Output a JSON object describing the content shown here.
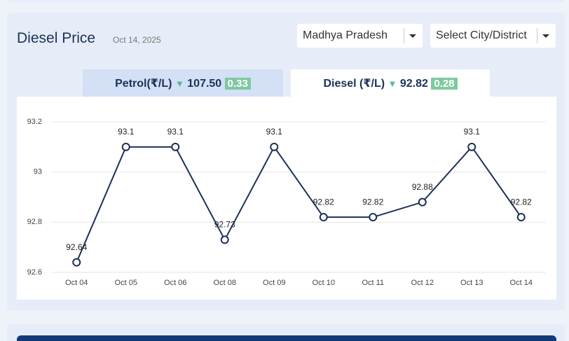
{
  "header": {
    "title": "Diesel Price",
    "date": "Oct 14, 2025",
    "state_select": "Madhya Pradesh",
    "city_select": "Select City/District"
  },
  "tabs": [
    {
      "label": "Petrol(₹/L)",
      "price": "107.50",
      "change": "0.33"
    },
    {
      "label": "Diesel (₹/L)",
      "price": "92.82",
      "change": "0.28"
    }
  ],
  "chart_data": {
    "type": "line",
    "categories": [
      "Oct 04",
      "Oct 05",
      "Oct 06",
      "Oct 08",
      "Oct 09",
      "Oct 10",
      "Oct 11",
      "Oct 12",
      "Oct 13",
      "Oct 14"
    ],
    "values": [
      92.64,
      93.1,
      93.1,
      92.73,
      93.1,
      92.82,
      92.82,
      92.88,
      93.1,
      92.82
    ],
    "color": "#1b3158",
    "ylim": [
      92.6,
      93.2
    ],
    "yticks": [
      92.6,
      92.8,
      93,
      93.2
    ],
    "grid": true
  }
}
